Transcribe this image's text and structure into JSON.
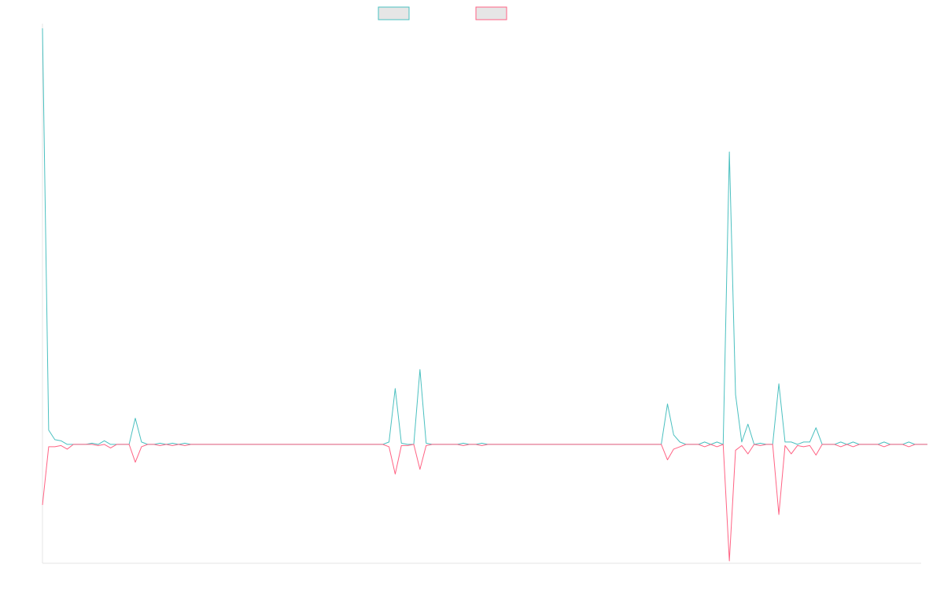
{
  "chart_data": {
    "type": "line",
    "title": "",
    "xlabel": "",
    "ylabel": "",
    "legend": {
      "placement": "top-center",
      "entries": [
        "",
        ""
      ]
    },
    "grid": false,
    "x_count": 143,
    "ylim": [
      -100,
      350
    ],
    "series": [
      {
        "color": "#4bc0c0",
        "fill": "#e6e6e6",
        "values": [
          350,
          12,
          4,
          3,
          0,
          0,
          0,
          0,
          1,
          0,
          3,
          0,
          0,
          0,
          0,
          22,
          2,
          0,
          0,
          1,
          0,
          1,
          0,
          1,
          0,
          0,
          0,
          0,
          0,
          0,
          0,
          0,
          0,
          0,
          0,
          0,
          0,
          0,
          0,
          0,
          0,
          0,
          0,
          0,
          0,
          0,
          0,
          0,
          0,
          0,
          0,
          0,
          0,
          0,
          0,
          0,
          2,
          47,
          1,
          0,
          0,
          63,
          1,
          0,
          0,
          0,
          0,
          0,
          1,
          0,
          0,
          1,
          0,
          0,
          0,
          0,
          0,
          0,
          0,
          0,
          0,
          0,
          0,
          0,
          0,
          0,
          0,
          0,
          0,
          0,
          0,
          0,
          0,
          0,
          0,
          0,
          0,
          0,
          0,
          0,
          0,
          34,
          8,
          2,
          0,
          0,
          0,
          2,
          0,
          2,
          0,
          246,
          42,
          2,
          17,
          0,
          1,
          0,
          0,
          51,
          2,
          2,
          0,
          2,
          2,
          14,
          0,
          0,
          0,
          2,
          0,
          2,
          0,
          0,
          0,
          0,
          2,
          0,
          0,
          0,
          2,
          0,
          0,
          0
        ]
      },
      {
        "color": "#ff6384",
        "fill": "#e6e6e6",
        "values": [
          -51,
          -2,
          -2,
          -1,
          -4,
          0,
          0,
          0,
          0,
          -1,
          0,
          -3,
          0,
          0,
          0,
          -15,
          -2,
          0,
          0,
          -1,
          0,
          -1,
          0,
          -1,
          0,
          0,
          0,
          0,
          0,
          0,
          0,
          0,
          0,
          0,
          0,
          0,
          0,
          0,
          0,
          0,
          0,
          0,
          0,
          0,
          0,
          0,
          0,
          0,
          0,
          0,
          0,
          0,
          0,
          0,
          0,
          0,
          -2,
          -25,
          -1,
          -1,
          0,
          -21,
          -1,
          0,
          0,
          0,
          0,
          0,
          -1,
          0,
          0,
          -1,
          0,
          0,
          0,
          0,
          0,
          0,
          0,
          0,
          0,
          0,
          0,
          0,
          0,
          0,
          0,
          0,
          0,
          0,
          0,
          0,
          0,
          0,
          0,
          0,
          0,
          0,
          0,
          0,
          0,
          -13,
          -4,
          -2,
          0,
          0,
          0,
          -2,
          0,
          -2,
          0,
          -98,
          -5,
          -1,
          -8,
          0,
          -1,
          0,
          0,
          -59,
          -1,
          -8,
          -1,
          -2,
          -1,
          -9,
          0,
          0,
          0,
          -2,
          0,
          -2,
          0,
          0,
          0,
          0,
          -2,
          0,
          0,
          0,
          -2,
          0,
          0,
          0
        ]
      }
    ]
  }
}
